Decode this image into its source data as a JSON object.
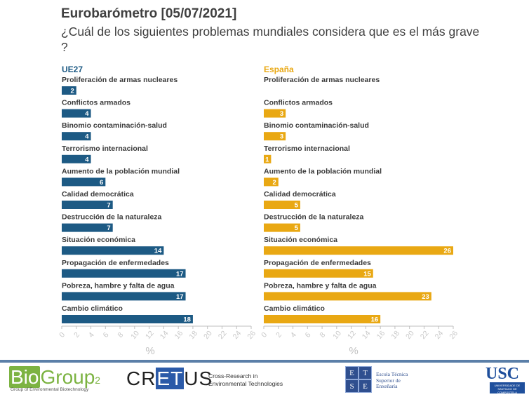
{
  "title": "Eurobarómetro [05/07/2021]",
  "question": "¿Cuál de los siguientes problemas mundiales considera que es el más grave ?",
  "colors": {
    "ue27": "#1d5a84",
    "espana": "#e9a813",
    "axis": "#bfbfbf",
    "tick_text": "#c8c8c8"
  },
  "chart_data": [
    {
      "type": "bar",
      "orientation": "horizontal",
      "panel_title": "UE27",
      "categories": [
        "Proliferación de armas nucleares",
        "Conflictos armados",
        "Binomio contaminación-salud",
        "Terrorismo internacional",
        "Aumento de la población mundial",
        "Calidad democrática",
        "Destrucción de la naturaleza",
        "Situación económica",
        "Propagación de enfermedades",
        "Pobreza, hambre y falta de agua",
        "Cambio climático"
      ],
      "values": [
        2,
        4,
        4,
        4,
        6,
        7,
        7,
        14,
        17,
        17,
        18
      ],
      "xlabel": "%",
      "xlim": [
        0,
        26
      ],
      "xticks": [
        "0",
        "2",
        "4",
        "6",
        "8",
        "10",
        "12",
        "14",
        "16",
        "18",
        "20",
        "22",
        "24",
        "26"
      ]
    },
    {
      "type": "bar",
      "orientation": "horizontal",
      "panel_title": "España",
      "categories": [
        "Proliferación de armas nucleares",
        "Conflictos armados",
        "Binomio contaminación-salud",
        "Terrorismo internacional",
        "Aumento de la población mundial",
        "Calidad democrática",
        "Destrucción de la naturaleza",
        "Situación económica",
        "Propagación de enfermedades",
        "Pobreza, hambre y falta de agua",
        "Cambio climático"
      ],
      "values": [
        0,
        3,
        3,
        1,
        2,
        5,
        5,
        26,
        15,
        23,
        16
      ],
      "xlabel": "%",
      "xlim": [
        0,
        26
      ],
      "xticks": [
        "0",
        "2",
        "4",
        "6",
        "8",
        "10",
        "12",
        "14",
        "16",
        "18",
        "20",
        "22",
        "24",
        "26"
      ]
    }
  ],
  "logos": {
    "biogroup": {
      "bio": "Bio",
      "group": "Group",
      "two": "2",
      "sub": "Group of Environmental Biotechnology"
    },
    "cretus": {
      "pre": "CR",
      "mid": "ET",
      "post": "US",
      "sub_line1": "Cross-Research in",
      "sub_line2": "Environmental Technologies"
    },
    "etse": {
      "e1": "E",
      "t": "T",
      "s": "S",
      "e2": "E",
      "sub_line1": "Escola Técnica",
      "sub_line2": "Superior de",
      "sub_line3": "Enxeñaría"
    },
    "usc": {
      "word": "USC",
      "sub": "UNIVERSIDADE DE SANTIAGO DE COMPOSTELA"
    }
  }
}
